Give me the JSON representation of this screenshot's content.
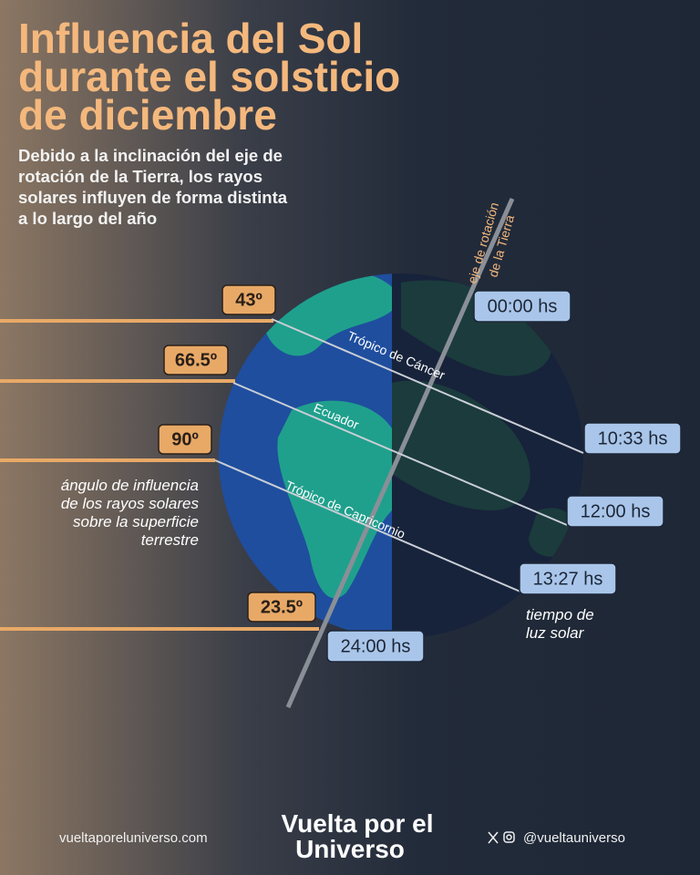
{
  "header": {
    "title_lines": [
      "Influencia del Sol",
      "durante el solsticio",
      "de diciembre"
    ],
    "subtitle_lines": [
      "Debido a la inclinación del eje de",
      "rotación de la Tierra, los rayos",
      "solares influyen de forma distinta",
      "a lo largo del año"
    ]
  },
  "axis_label_lines": [
    "eje de rotación",
    "de la Tierra"
  ],
  "angles": [
    "43º",
    "66.5º",
    "90º",
    "23.5º"
  ],
  "angle_caption_lines": [
    "ángulo de influencia",
    "de los rayos solares",
    "sobre la superficie",
    "terrestre"
  ],
  "parallels": [
    "Trópico de Cáncer",
    "Ecuador",
    "Trópico de Capricornio"
  ],
  "times": [
    "00:00 hs",
    "10:33 hs",
    "12:00 hs",
    "13:27 hs",
    "24:00 hs"
  ],
  "time_caption_lines": [
    "tiempo de",
    "luz solar"
  ],
  "footer": {
    "website": "vueltaporeluniverso.com",
    "brand_lines": [
      "Vuelta por el",
      "Universo"
    ],
    "handle": "@vueltauniverso"
  }
}
